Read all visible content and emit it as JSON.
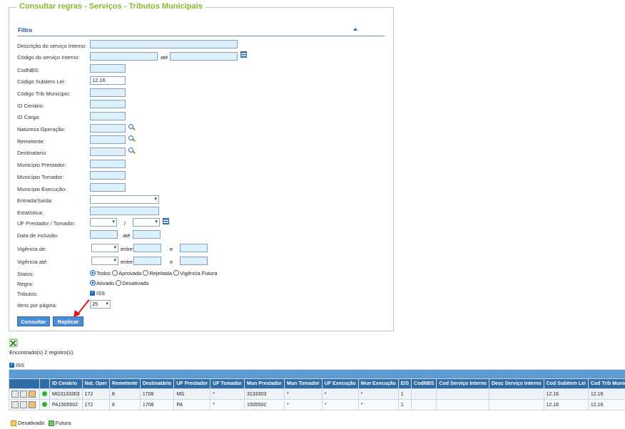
{
  "panel": {
    "title": "Consultar regras - Serviços - Tributos Municipais",
    "filter_title": "Filtro"
  },
  "form": {
    "desc_servico": "Descrição do serviço Interno:",
    "cod_servico": "Código do serviço Interno:",
    "ate": "até",
    "codnbs": "CodNBS:",
    "cod_subitem": "Código Subitem Lei:",
    "cod_subitem_value": "12.16",
    "cod_trib": "Código Trib Município:",
    "id_cenario": "ID Cenário:",
    "id_carga": "ID Carga:",
    "natureza": "Natureza Operação:",
    "remetente": "Remetente:",
    "destinatario": "Destinatario:",
    "mun_prestador": "Município Prestador:",
    "mun_tomador": "Município Tomador:",
    "mun_execucao": "Município Execução:",
    "entrada_saida": "Entrada/Saída:",
    "estatistica": "Estatística:",
    "uf_prest_tom": "UF Prestador / Tomador:",
    "slash": "/",
    "data_inclusao": "Data de inclusão:",
    "vigencia_de": "Vigência de:",
    "vigencia_ate": "Vigência até:",
    "entre": "entre",
    "e": "e",
    "status": "Status:",
    "status_options": [
      "Todos",
      "Aprovada",
      "Rejeitada",
      "Vigência Futura"
    ],
    "regra": "Regra:",
    "regra_options": [
      "Ativado",
      "Desativado"
    ],
    "tributos": "Tributos:",
    "tributo_iss": "ISS",
    "itens_pagina": "Itens por página:",
    "itens_value": "25",
    "btn_consultar": "Consultar",
    "btn_replicar": "Replicar"
  },
  "results": {
    "count_text": "Encontrado(s) 2 registro(s).",
    "tab_iss": "ISS",
    "columns": [
      "ID Cenário",
      "Nat. Oper",
      "Remetente",
      "Destinatário",
      "UF Prestador",
      "UF Tomador",
      "Mun Prestador",
      "Mun Tomador",
      "UF Execução",
      "Mun Execução",
      "E/S",
      "CodNBS",
      "Cod Serviço Interno",
      "Desc Serviço Interno",
      "Cod Subitem Lei",
      "Cod Trib Município"
    ],
    "rows": [
      [
        "MG3133303",
        "172",
        "8",
        "1708",
        "MG",
        "*",
        "3133303",
        "*",
        "*",
        "*",
        "1",
        "",
        "",
        "",
        "12.16",
        "12.16"
      ],
      [
        "PA1505502",
        "172",
        "8",
        "1708",
        "PA",
        "*",
        "1505502",
        "*",
        "*",
        "*",
        "1",
        "",
        "",
        "",
        "12.16",
        "12.16"
      ]
    ]
  },
  "legend": {
    "desativado": "Desativado",
    "futura": "Futura"
  }
}
